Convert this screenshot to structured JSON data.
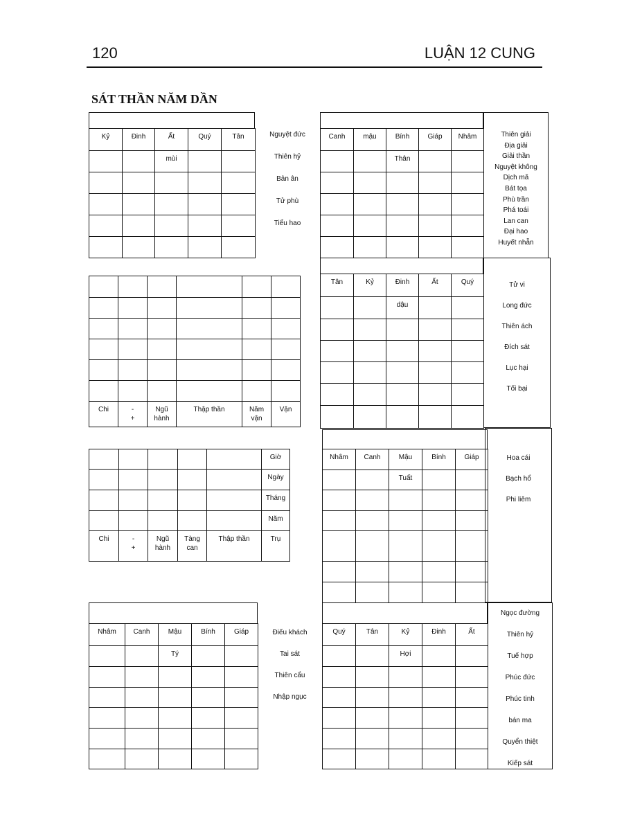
{
  "header": {
    "page_number": "120",
    "running_title": "LUẬN 12 CUNG"
  },
  "title": "SÁT THẦN NĂM DẦN",
  "block1": {
    "left": {
      "headers": [
        "Kỷ",
        "Đinh",
        "Ất",
        "Quý",
        "Tân"
      ],
      "sub": "mùi"
    },
    "middle": [
      "Nguyệt đức",
      "Thiên hỷ",
      "Bản ân",
      "Tử phù",
      "Tiểu hao"
    ],
    "right": {
      "headers": [
        "Canh",
        "mậu",
        "Bính",
        "Giáp",
        "Nhâm"
      ],
      "sub": "Thân"
    },
    "side": [
      "Thiên giải",
      "Địa giải",
      "Giải thần",
      "Nguyệt không",
      "Dịch mã",
      "Bát tọa",
      "Phù trần",
      "Phá toái",
      "Lan can",
      "Đại hao",
      "Huyết nhẫn"
    ]
  },
  "block2": {
    "left": {
      "footer": [
        "Chi",
        "-\n+",
        "Ngũ\nhành",
        "Thập thần",
        "Năm\nvận",
        "Vận"
      ]
    },
    "right": {
      "headers": [
        "Tân",
        "Kỷ",
        "Đinh",
        "Ất",
        "Quý"
      ],
      "sub": "dậu"
    },
    "side": [
      "Tử vi",
      "Long đức",
      "Thiên ách",
      "Đích sát",
      "Lục hại",
      "Tối bại"
    ]
  },
  "block3": {
    "left": {
      "row_labels": [
        "Giờ",
        "Ngày",
        "Tháng",
        "Năm"
      ],
      "footer": [
        "Chi",
        "-\n+",
        "Ngũ\nhành",
        "Tàng\ncan",
        "Thập thần",
        "Trụ"
      ]
    },
    "right": {
      "headers": [
        "Nhâm",
        "Canh",
        "Mậu",
        "Bính",
        "Giáp"
      ],
      "sub": "Tuất"
    },
    "side": [
      "Hoa cái",
      "Bạch hổ",
      "Phi liêm"
    ]
  },
  "block4": {
    "left": {
      "headers": [
        "Nhâm",
        "Canh",
        "Mậu",
        "Bính",
        "Giáp"
      ],
      "sub": "Tý"
    },
    "middle": [
      "Điếu khách",
      "Tai sát",
      "Thiên cẩu",
      "Nhập ngục"
    ],
    "right": {
      "headers": [
        "Quý",
        "Tân",
        "Kỷ",
        "Đinh",
        "Ất"
      ],
      "sub": "Hợi"
    },
    "side": [
      "Ngọc đường",
      "Thiên hỷ",
      "Tuế hợp",
      "Phúc đức",
      "Phúc tinh",
      "bán ma",
      "Quyển thiệt",
      "Kiếp sát"
    ]
  }
}
